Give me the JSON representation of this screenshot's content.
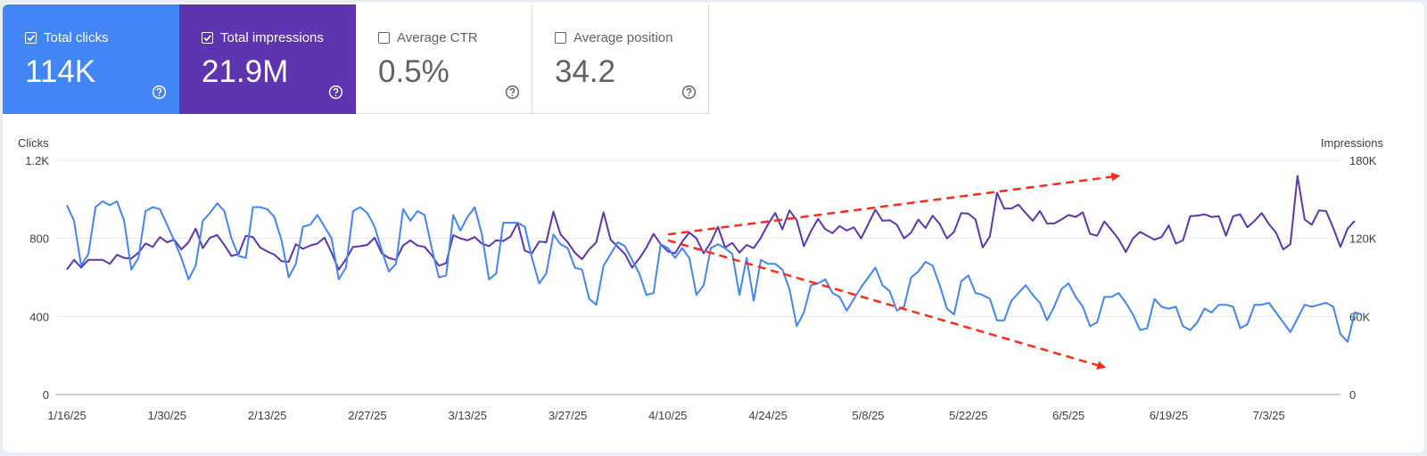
{
  "metrics": [
    {
      "label": "Total clicks",
      "value": "114K",
      "checked": true,
      "color": "#4285f4"
    },
    {
      "label": "Total impressions",
      "value": "21.9M",
      "checked": true,
      "color": "#5e35b1"
    },
    {
      "label": "Average CTR",
      "value": "0.5%",
      "checked": false,
      "color": "#ffffff"
    },
    {
      "label": "Average position",
      "value": "34.2",
      "checked": false,
      "color": "#ffffff"
    }
  ],
  "icons": {
    "checkbox": "checkbox-icon",
    "help": "help-circle-icon"
  },
  "chart_data": {
    "type": "line",
    "left_axis_label": "Clicks",
    "right_axis_label": "Impressions",
    "left_ticks": [
      "0",
      "400",
      "800",
      "1.2K"
    ],
    "right_ticks": [
      "0",
      "60K",
      "120K",
      "180K"
    ],
    "ylim_left": [
      0,
      1200
    ],
    "ylim_right": [
      0,
      180000
    ],
    "x_start": "1/16/25",
    "x_ticks": [
      "1/16/25",
      "1/30/25",
      "2/13/25",
      "2/27/25",
      "3/13/25",
      "3/27/25",
      "4/10/25",
      "4/24/25",
      "5/8/25",
      "5/22/25",
      "6/5/25",
      "6/19/25",
      "7/3/25"
    ],
    "grid": true,
    "series": [
      {
        "name": "Clicks",
        "axis": "left",
        "color": "#4285f4",
        "values": [
          970,
          890,
          660,
          720,
          960,
          990,
          970,
          990,
          890,
          640,
          700,
          940,
          960,
          950,
          870,
          790,
          700,
          590,
          660,
          890,
          930,
          980,
          940,
          800,
          710,
          700,
          960,
          960,
          950,
          910,
          790,
          600,
          670,
          860,
          870,
          920,
          860,
          800,
          590,
          650,
          940,
          960,
          930,
          860,
          740,
          630,
          670,
          950,
          890,
          940,
          920,
          750,
          600,
          610,
          920,
          840,
          910,
          960,
          820,
          590,
          620,
          880,
          880,
          880,
          860,
          700,
          570,
          620,
          820,
          770,
          750,
          650,
          640,
          490,
          460,
          660,
          720,
          780,
          760,
          690,
          620,
          510,
          520,
          770,
          750,
          700,
          750,
          700,
          510,
          560,
          750,
          770,
          750,
          720,
          510,
          700,
          480,
          690,
          670,
          670,
          640,
          540,
          350,
          420,
          560,
          570,
          590,
          520,
          500,
          430,
          490,
          550,
          600,
          650,
          560,
          530,
          430,
          450,
          600,
          630,
          680,
          660,
          560,
          440,
          410,
          580,
          610,
          520,
          510,
          490,
          380,
          380,
          480,
          520,
          560,
          510,
          470,
          380,
          450,
          540,
          570,
          500,
          450,
          350,
          370,
          500,
          500,
          520,
          470,
          410,
          330,
          340,
          490,
          450,
          440,
          450,
          350,
          330,
          370,
          440,
          420,
          460,
          460,
          450,
          340,
          360,
          460,
          460,
          470,
          420,
          370,
          320,
          390,
          460,
          450,
          460,
          470,
          450,
          310,
          270,
          420,
          410
        ]
      },
      {
        "name": "Impressions",
        "axis": "right",
        "color": "#5e35b1",
        "values": [
          96000,
          103500,
          97500,
          103500,
          103500,
          103500,
          100500,
          107400,
          105000,
          104500,
          109000,
          116000,
          113500,
          121000,
          117000,
          119000,
          111500,
          117000,
          127500,
          112500,
          120500,
          122500,
          115000,
          106500,
          108000,
          122000,
          121000,
          113000,
          110000,
          107500,
          102500,
          102000,
          115500,
          112000,
          114500,
          116000,
          120500,
          109000,
          96000,
          104000,
          113500,
          114000,
          115000,
          120500,
          108500,
          105000,
          103500,
          114500,
          118500,
          114500,
          113500,
          107000,
          99000,
          101000,
          122500,
          120000,
          118500,
          121000,
          116000,
          114000,
          118500,
          118000,
          121500,
          132000,
          110500,
          108500,
          117500,
          117000,
          140500,
          123000,
          117000,
          109000,
          104000,
          111500,
          117000,
          140000,
          119000,
          113500,
          108000,
          97500,
          104500,
          113000,
          123500,
          115500,
          110000,
          108500,
          117500,
          124500,
          120000,
          108500,
          117000,
          129000,
          113000,
          116500,
          109000,
          115000,
          112500,
          120500,
          131000,
          139500,
          127000,
          141500,
          134000,
          114000,
          125500,
          135000,
          127000,
          124000,
          129500,
          126000,
          128500,
          120000,
          131000,
          142000,
          133500,
          134000,
          130500,
          120000,
          124500,
          134500,
          128000,
          137500,
          131000,
          120000,
          125000,
          139500,
          139000,
          134500,
          113000,
          121500,
          155000,
          143000,
          143000,
          146000,
          139500,
          133500,
          141000,
          131500,
          131500,
          134500,
          138000,
          136500,
          140000,
          123500,
          122000,
          133000,
          126500,
          119500,
          109500,
          120000,
          125000,
          122000,
          119000,
          121000,
          130000,
          116000,
          118500,
          137000,
          137500,
          138500,
          136500,
          137000,
          122000,
          137000,
          138500,
          128500,
          133500,
          139500,
          131000,
          124500,
          111500,
          115500,
          168000,
          134500,
          130500,
          141500,
          141000,
          128000,
          113500,
          127500,
          133500
        ]
      }
    ],
    "annotations": [
      {
        "type": "arrow",
        "style": "dashed",
        "color": "#ff2a1a",
        "direction": "up"
      },
      {
        "type": "arrow",
        "style": "dashed",
        "color": "#ff2a1a",
        "direction": "down"
      }
    ]
  }
}
